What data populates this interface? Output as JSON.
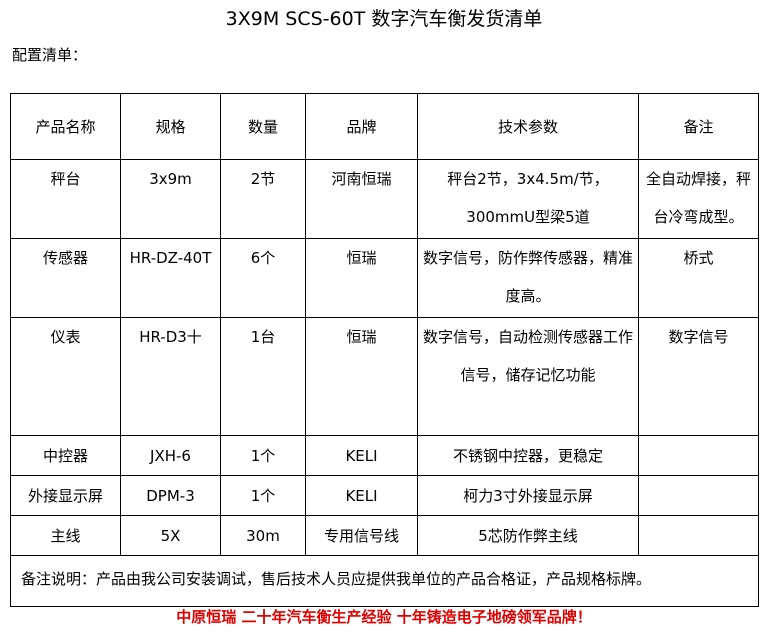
{
  "title": "3X9M SCS-60T 数字汽车衡发货清单",
  "subtitle": "配置清单：",
  "table": {
    "headers": [
      "产品名称",
      "规格",
      "数量",
      "品牌",
      "技术参数",
      "备注"
    ],
    "rows": [
      [
        "秤台",
        "3x9m",
        "2节",
        "河南恒瑞",
        "秤台2节，3x4.5m/节，300mmU型梁5道",
        "全自动焊接，秤台冷弯成型。"
      ],
      [
        "传感器",
        "HR-DZ-40T",
        "6个",
        "恒瑞",
        "数字信号，防作弊传感器，精准度高。",
        "桥式"
      ],
      [
        "仪表",
        "HR-D3十",
        "1台",
        "恒瑞",
        "数字信号，自动检测传感器工作信号，储存记忆功能",
        "数字信号"
      ],
      [
        "中控器",
        "JXH-6",
        "1个",
        "KELI",
        "不锈钢中控器，更稳定",
        ""
      ],
      [
        "外接显示屏",
        "DPM-3",
        "1个",
        "KELI",
        "柯力3寸外接显示屏",
        ""
      ],
      [
        "主线",
        "5X",
        "30m",
        "专用信号线",
        "5芯防作弊主线",
        ""
      ]
    ],
    "note": "备注说明：产品由我公司安装调试，售后技术人员应提供我单位的产品合格证，产品规格标牌。"
  },
  "slogan": "中原恒瑞  二十年汽车衡生产经验  十年铸造电子地磅领军品牌！",
  "colors": {
    "slogan": "#e00000"
  }
}
